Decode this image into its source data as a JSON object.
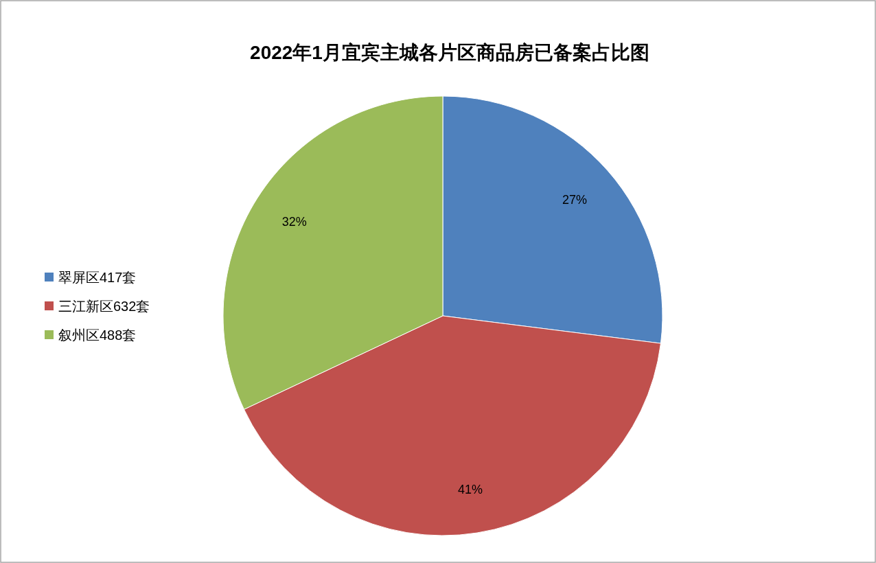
{
  "chart_data": {
    "type": "pie",
    "title": "2022年1月宜宾主城各片区商品房已备案占比图",
    "categories": [
      "翠屏区417套",
      "三江新区632套",
      "叙州区488套"
    ],
    "values": [
      27,
      41,
      32
    ],
    "colors": [
      "#4f81bd",
      "#c0504d",
      "#9bbb59"
    ],
    "value_labels": [
      "27%",
      "41%",
      "32%"
    ],
    "legend": "left"
  }
}
